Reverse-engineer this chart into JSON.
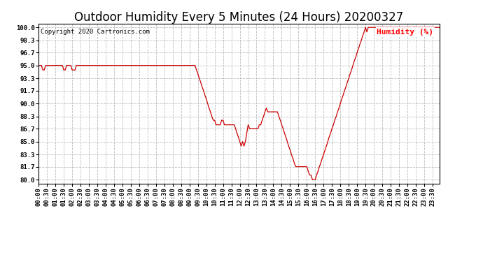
{
  "title": "Outdoor Humidity Every 5 Minutes (24 Hours) 20200327",
  "copyright_text": "Copyright 2020 Cartronics.com",
  "legend_label": "Humidity (%)",
  "legend_color": "#ff0000",
  "line_color": "#cc0000",
  "background_color": "#ffffff",
  "grid_color": "#bbbbbb",
  "ylim": [
    79.5,
    100.5
  ],
  "yticks": [
    80.0,
    81.7,
    83.3,
    85.0,
    86.7,
    88.3,
    90.0,
    91.7,
    93.3,
    95.0,
    96.7,
    98.3,
    100.0
  ],
  "title_fontsize": 12,
  "tick_fontsize": 6.5,
  "humidity_data": [
    95.0,
    95.0,
    95.0,
    94.4,
    94.4,
    95.0,
    95.0,
    95.0,
    95.0,
    95.0,
    95.0,
    95.0,
    95.0,
    95.0,
    95.0,
    95.0,
    95.0,
    95.0,
    94.4,
    94.4,
    95.0,
    95.0,
    95.0,
    95.0,
    94.4,
    94.4,
    94.4,
    95.0,
    95.0,
    95.0,
    95.0,
    95.0,
    95.0,
    95.0,
    95.0,
    95.0,
    95.0,
    95.0,
    95.0,
    95.0,
    95.0,
    95.0,
    95.0,
    95.0,
    95.0,
    95.0,
    95.0,
    95.0,
    95.0,
    95.0,
    95.0,
    95.0,
    95.0,
    95.0,
    95.0,
    95.0,
    95.0,
    95.0,
    95.0,
    95.0,
    95.0,
    95.0,
    95.0,
    95.0,
    95.0,
    95.0,
    95.0,
    95.0,
    95.0,
    95.0,
    95.0,
    95.0,
    95.0,
    95.0,
    95.0,
    95.0,
    95.0,
    95.0,
    95.0,
    95.0,
    95.0,
    95.0,
    95.0,
    95.0,
    95.0,
    95.0,
    95.0,
    95.0,
    95.0,
    95.0,
    95.0,
    95.0,
    95.0,
    95.0,
    95.0,
    95.0,
    95.0,
    95.0,
    95.0,
    95.0,
    95.0,
    95.0,
    95.0,
    95.0,
    95.0,
    95.0,
    95.0,
    95.0,
    95.0,
    95.0,
    95.0,
    95.0,
    95.0,
    94.4,
    93.9,
    93.3,
    92.8,
    92.2,
    91.7,
    91.1,
    90.6,
    90.0,
    89.4,
    88.9,
    88.3,
    87.8,
    87.8,
    87.2,
    87.2,
    87.2,
    87.2,
    87.8,
    87.8,
    87.2,
    87.2,
    87.2,
    87.2,
    87.2,
    87.2,
    87.2,
    87.2,
    86.7,
    86.1,
    85.6,
    85.0,
    84.4,
    85.0,
    84.4,
    85.0,
    86.1,
    87.2,
    86.7,
    86.7,
    86.7,
    86.7,
    86.7,
    86.7,
    86.7,
    87.2,
    87.2,
    87.8,
    88.3,
    88.9,
    89.4,
    88.9,
    88.9,
    88.9,
    88.9,
    88.9,
    88.9,
    88.9,
    88.9,
    88.3,
    87.8,
    87.2,
    86.7,
    86.1,
    85.6,
    85.0,
    84.4,
    83.9,
    83.3,
    82.8,
    82.2,
    81.7,
    81.7,
    81.7,
    81.7,
    81.7,
    81.7,
    81.7,
    81.7,
    81.7,
    81.1,
    80.6,
    80.6,
    80.0,
    80.0,
    80.0,
    80.6,
    81.1,
    81.7,
    82.2,
    82.8,
    83.3,
    83.9,
    84.4,
    85.0,
    85.6,
    86.1,
    86.7,
    87.2,
    87.8,
    88.3,
    88.9,
    89.4,
    90.0,
    90.6,
    91.1,
    91.7,
    92.2,
    92.8,
    93.3,
    93.9,
    94.4,
    95.0,
    95.6,
    96.1,
    96.7,
    97.2,
    97.8,
    98.3,
    98.9,
    99.4,
    100.0,
    99.4,
    100.0,
    100.0,
    100.0,
    100.0,
    100.0,
    100.0,
    100.0,
    100.0,
    100.0,
    100.0,
    100.0,
    100.0,
    100.0,
    100.0,
    100.0,
    100.0,
    100.0,
    100.0,
    100.0,
    100.0,
    100.0,
    100.0,
    100.0,
    100.0,
    100.0,
    100.0,
    100.0,
    100.0,
    100.0,
    100.0,
    100.0,
    100.0,
    100.0,
    100.0,
    100.0,
    100.0,
    100.0,
    100.0,
    100.0,
    100.0,
    100.0,
    100.0,
    100.0,
    100.0,
    100.0,
    100.0,
    100.0,
    100.0,
    100.0,
    100.0,
    100.0,
    100.0
  ]
}
